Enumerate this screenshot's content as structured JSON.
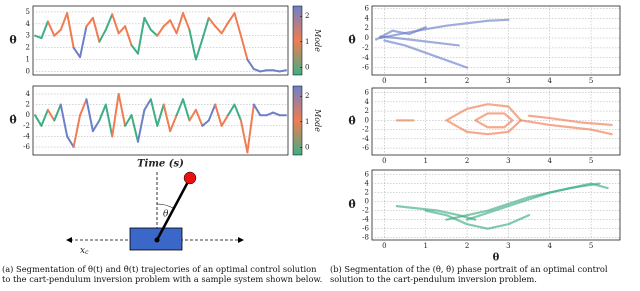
{
  "chart_data": [
    {
      "type": "line",
      "ylabel": "θ",
      "ylim": [
        -0.3,
        5.5
      ],
      "yticks": [
        0,
        1,
        2,
        3,
        4,
        5
      ],
      "grid": true,
      "mode_colors": [
        "#3fae84",
        "#f07c52",
        "#6b80c9"
      ],
      "colorbar": {
        "label": "Mode",
        "lim": [
          -0.3,
          2.4
        ],
        "ticks": [
          0,
          1,
          2
        ]
      },
      "values": [
        3,
        2.8,
        4.2,
        3,
        3.5,
        4.9,
        2,
        1.2,
        3.8,
        4.5,
        2.5,
        3.5,
        4.8,
        3.2,
        3.8,
        2.2,
        1.5,
        4.5,
        3.5,
        3,
        3.8,
        4.3,
        3.2,
        4.9,
        3.5,
        1,
        2.7,
        4.5,
        3.8,
        3.2,
        4.1,
        4.9,
        3,
        1,
        0.2,
        0,
        0.1,
        0.1,
        0,
        0.1
      ],
      "modes": [
        0,
        0,
        1,
        1,
        1,
        1,
        2,
        2,
        1,
        1,
        0,
        0,
        1,
        1,
        1,
        0,
        0,
        0,
        0,
        1,
        1,
        1,
        1,
        1,
        0,
        0,
        0,
        1,
        1,
        1,
        1,
        1,
        1,
        2,
        2,
        2,
        2,
        2,
        2,
        2
      ]
    },
    {
      "type": "line",
      "ylabel": "θ̇",
      "xlabel": "Time (s)",
      "ylim": [
        -7.5,
        5.5
      ],
      "yticks": [
        -6,
        -4,
        -2,
        0,
        2,
        4
      ],
      "grid": true,
      "mode_colors": [
        "#3fae84",
        "#f07c52",
        "#6b80c9"
      ],
      "colorbar": {
        "label": "Mode",
        "lim": [
          -0.3,
          2.4
        ],
        "ticks": [
          0,
          1,
          2
        ]
      },
      "values": [
        0,
        -2,
        1,
        -1,
        2,
        -4,
        -6,
        0,
        3,
        -3,
        -1,
        2,
        -4,
        4,
        -2,
        0,
        -5,
        1,
        3,
        -2,
        2,
        -3,
        0,
        3,
        -1,
        1,
        -2,
        -1,
        2,
        -2,
        0,
        2,
        -1,
        -7,
        2,
        0,
        0,
        0.5,
        0,
        0
      ],
      "modes": [
        0,
        0,
        1,
        0,
        2,
        2,
        1,
        1,
        2,
        2,
        0,
        0,
        1,
        1,
        0,
        0,
        2,
        2,
        0,
        0,
        1,
        1,
        0,
        0,
        1,
        1,
        2,
        2,
        1,
        1,
        0,
        0,
        1,
        1,
        2,
        2,
        2,
        2,
        2,
        2
      ]
    },
    {
      "type": "phase",
      "ylabel": "θ̇",
      "xlim": [
        -0.3,
        5.7
      ],
      "xticks": [
        0,
        1,
        2,
        3,
        4,
        5
      ],
      "ylim": [
        -7.5,
        6.5
      ],
      "yticks": [
        -6,
        -4,
        -2,
        0,
        2,
        4,
        6
      ],
      "grid": true,
      "series": [
        {
          "color": "#6b80c9",
          "x": [
            -0.1,
            0.5,
            1,
            1.5,
            2,
            2.5,
            3
          ],
          "values": [
            0,
            1,
            1.8,
            2.5,
            3,
            3.5,
            3.7
          ]
        },
        {
          "color": "#6b80c9",
          "x": [
            0,
            0.5,
            1,
            1.5,
            2
          ],
          "values": [
            -0.5,
            -1.5,
            -3,
            -4.5,
            -6
          ]
        },
        {
          "color": "#6b80c9",
          "x": [
            -0.1,
            0.3,
            0.8,
            1.3,
            1.8
          ],
          "values": [
            0.3,
            0,
            -0.5,
            -1,
            -1.5
          ]
        },
        {
          "color": "#6b80c9",
          "x": [
            -0.2,
            0.2,
            0.6,
            1.0
          ],
          "values": [
            -0.3,
            1.5,
            0.8,
            2.2
          ]
        }
      ]
    },
    {
      "type": "phase",
      "ylabel": "θ̇",
      "xlim": [
        -0.3,
        5.7
      ],
      "xticks": [
        0,
        1,
        2,
        3,
        4,
        5
      ],
      "ylim": [
        -7.5,
        7
      ],
      "yticks": [
        -6,
        -4,
        -2,
        0,
        2,
        4,
        6
      ],
      "grid": true,
      "series": [
        {
          "color": "#f07c52",
          "x": [
            1.5,
            2,
            2.5,
            3,
            3.3,
            3,
            2.5,
            2,
            1.5
          ],
          "values": [
            0,
            2.5,
            3.5,
            3,
            0,
            -2.5,
            -3,
            -2.5,
            0
          ]
        },
        {
          "color": "#f07c52",
          "x": [
            2.2,
            2.5,
            2.9,
            3.1,
            2.9,
            2.5,
            2.2
          ],
          "values": [
            0,
            1.5,
            1.5,
            0,
            -1.5,
            -1.5,
            0
          ]
        },
        {
          "color": "#f07c52",
          "x": [
            3.3,
            4,
            4.5,
            5,
            5.5
          ],
          "values": [
            0,
            -1,
            -1.5,
            -2,
            -3
          ]
        },
        {
          "color": "#f07c52",
          "x": [
            3.5,
            4,
            4.8,
            5.5
          ],
          "values": [
            1,
            0.5,
            -0.5,
            -1
          ]
        },
        {
          "color": "#f07c52",
          "x": [
            0.3,
            0.7
          ],
          "values": [
            0,
            0
          ]
        }
      ]
    },
    {
      "type": "phase",
      "ylabel": "θ̇",
      "xlabel": "θ",
      "xlim": [
        -0.3,
        5.7
      ],
      "xticks": [
        0,
        1,
        2,
        3,
        4,
        5
      ],
      "ylim": [
        -8.5,
        7
      ],
      "yticks": [
        -8,
        -6,
        -4,
        -2,
        0,
        2,
        4,
        6
      ],
      "grid": true,
      "series": [
        {
          "color": "#3fae84",
          "x": [
            1,
            1.5,
            2,
            2.5,
            3,
            3.5
          ],
          "values": [
            -2,
            -3,
            -5,
            -6,
            -5,
            -3
          ]
        },
        {
          "color": "#3fae84",
          "x": [
            2,
            3,
            4,
            5,
            5.4
          ],
          "values": [
            -4,
            -1,
            2,
            4,
            3
          ]
        },
        {
          "color": "#3fae84",
          "x": [
            1.5,
            2.5,
            3.5,
            4.5,
            5.2
          ],
          "values": [
            -4,
            -2,
            1,
            3,
            4
          ]
        },
        {
          "color": "#3fae84",
          "x": [
            0.3,
            0.8,
            1.3,
            1.8,
            2.2
          ],
          "values": [
            -1,
            -1.5,
            -2,
            -3,
            -4
          ]
        }
      ]
    }
  ],
  "diagram": {
    "angle": "θ",
    "position": "x",
    "position_sub": "c"
  },
  "captions": [
    "(a) Segmentation of θ(t) and θ̇(t) trajectories of an optimal control solution to the cart-pendulum inversion problem with a sample system shown below.",
    "(b) Segmentation of the (θ, θ̇) phase portrait of an optimal control solution to the cart-pendulum inversion problem."
  ]
}
